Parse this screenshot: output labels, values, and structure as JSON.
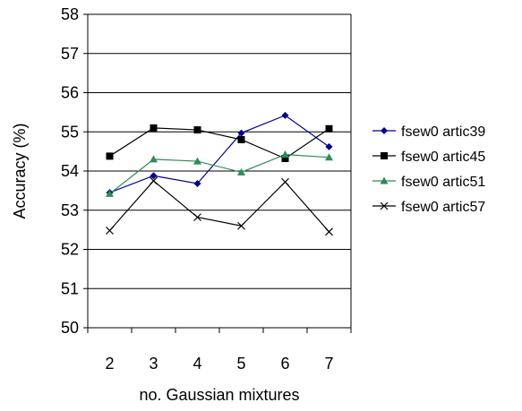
{
  "chart_data": {
    "type": "line",
    "title": "",
    "xlabel": "no. Gaussian mixtures",
    "ylabel": "Accuracy (%)",
    "categories": [
      "2",
      "3",
      "4",
      "5",
      "6",
      "7"
    ],
    "ylim": [
      50,
      58
    ],
    "yticks": [
      50,
      51,
      52,
      53,
      54,
      55,
      56,
      57,
      58
    ],
    "grid": "horizontal",
    "legend_position": "right",
    "series": [
      {
        "name": "fsew0 artic39",
        "color": "#00008B",
        "marker": "diamond",
        "values": [
          53.45,
          53.88,
          53.68,
          54.97,
          55.42,
          54.62
        ]
      },
      {
        "name": "fsew0 artic45",
        "color": "#000000",
        "marker": "square",
        "values": [
          54.38,
          55.1,
          55.05,
          54.8,
          54.32,
          55.08
        ]
      },
      {
        "name": "fsew0 artic51",
        "color": "#2E8B57",
        "marker": "triangle",
        "values": [
          53.42,
          54.3,
          54.25,
          53.97,
          54.42,
          54.35
        ]
      },
      {
        "name": "fsew0 artic57",
        "color": "#000000",
        "marker": "x",
        "values": [
          52.48,
          53.75,
          52.82,
          52.6,
          53.72,
          52.45
        ]
      }
    ]
  }
}
